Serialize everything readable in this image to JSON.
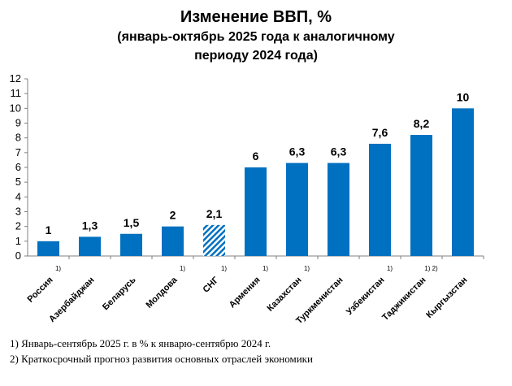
{
  "chart_data": {
    "type": "bar",
    "title": "Изменение ВВП, %",
    "subtitle_lines": [
      "(январь-октябрь 2025 года к аналогичному",
      "периоду 2024 года)"
    ],
    "categories": [
      "Россия",
      "Азербайджан",
      "Беларусь",
      "Молдова",
      "СНГ",
      "Армения",
      "Казахстан",
      "Туркменистан",
      "Узбекистан",
      "Таджикистан",
      "Кыргызстан"
    ],
    "footnote_marks": [
      "1)",
      "",
      "",
      "1)",
      "1)",
      "1)",
      "1)",
      "",
      "1)",
      "1) 2)",
      ""
    ],
    "values": [
      1,
      1.3,
      1.5,
      2,
      2.1,
      6,
      6.3,
      6.3,
      7.6,
      8.2,
      10
    ],
    "value_labels": [
      "1",
      "1,3",
      "1,5",
      "2",
      "2,1",
      "6",
      "6,3",
      "6,3",
      "7,6",
      "8,2",
      "10"
    ],
    "highlighted_category": "СНГ",
    "ylim": [
      0,
      12
    ],
    "yticks": [
      "0",
      "1",
      "2",
      "3",
      "4",
      "5",
      "6",
      "7",
      "8",
      "9",
      "10",
      "11",
      "12"
    ],
    "grid": false,
    "legend": "none",
    "colors": {
      "bar": "#0070C0",
      "highlight_hatch": "#0070C0",
      "axis": "#808080"
    }
  },
  "notes": [
    "1) Январь-сентябрь 2025 г. в % к январю-сентябрю 2024 г.",
    "2) Краткосрочный прогноз развития основных отраслей экономики"
  ]
}
